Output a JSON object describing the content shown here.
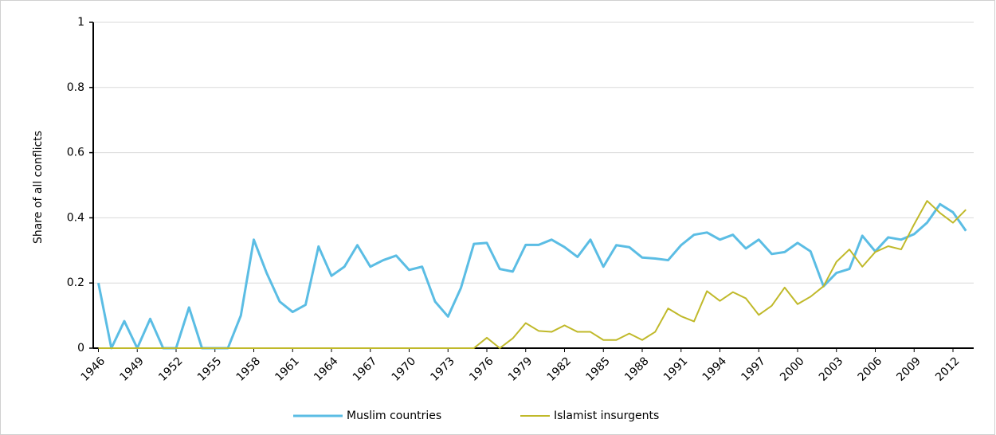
{
  "chart_data": {
    "type": "line",
    "x": [
      1946,
      1947,
      1948,
      1949,
      1950,
      1951,
      1952,
      1953,
      1954,
      1955,
      1956,
      1957,
      1958,
      1959,
      1960,
      1961,
      1962,
      1963,
      1964,
      1965,
      1966,
      1967,
      1968,
      1969,
      1970,
      1971,
      1972,
      1973,
      1974,
      1975,
      1976,
      1977,
      1978,
      1979,
      1980,
      1981,
      1982,
      1983,
      1984,
      1985,
      1986,
      1987,
      1988,
      1989,
      1990,
      1991,
      1992,
      1993,
      1994,
      1995,
      1996,
      1997,
      1998,
      1999,
      2000,
      2001,
      2002,
      2003,
      2004,
      2005,
      2006,
      2007,
      2008,
      2009,
      2010,
      2011,
      2012,
      2013
    ],
    "series": [
      {
        "name": "Muslim countries",
        "color": "#5bbde4",
        "values": [
          0.2,
          0,
          0.083,
          0,
          0.09,
          0,
          0,
          0.125,
          0,
          0,
          0,
          0.1,
          0.333,
          0.23,
          0.143,
          0.111,
          0.133,
          0.312,
          0.222,
          0.25,
          0.316,
          0.25,
          0.27,
          0.284,
          0.24,
          0.25,
          0.143,
          0.097,
          0.185,
          0.32,
          0.323,
          0.243,
          0.235,
          0.317,
          0.317,
          0.333,
          0.31,
          0.28,
          0.333,
          0.25,
          0.316,
          0.31,
          0.278,
          0.275,
          0.27,
          0.316,
          0.348,
          0.355,
          0.333,
          0.348,
          0.306,
          0.333,
          0.289,
          0.295,
          0.323,
          0.297,
          0.19,
          0.231,
          0.243,
          0.345,
          0.297,
          0.34,
          0.333,
          0.35,
          0.385,
          0.442,
          0.417,
          0.36
        ]
      },
      {
        "name": "Islamist insurgents",
        "color": "#c0b92a",
        "values": [
          0,
          0,
          0,
          0,
          0,
          0,
          0,
          0,
          0,
          0,
          0,
          0,
          0,
          0,
          0,
          0,
          0,
          0,
          0,
          0,
          0,
          0,
          0,
          0,
          0,
          0,
          0,
          0,
          0,
          0,
          0.032,
          0,
          0.03,
          0.077,
          0.053,
          0.05,
          0.07,
          0.05,
          0.05,
          0.025,
          0.025,
          0.045,
          0.025,
          0.05,
          0.122,
          0.098,
          0.082,
          0.175,
          0.145,
          0.172,
          0.153,
          0.102,
          0.13,
          0.186,
          0.135,
          0.158,
          0.19,
          0.265,
          0.303,
          0.25,
          0.295,
          0.313,
          0.303,
          0.38,
          0.452,
          0.415,
          0.385,
          0.425
        ]
      }
    ],
    "y_label": "Share of all conflicts",
    "xlim": [
      1945.6,
      2013.6
    ],
    "xticks": [
      1946,
      1949,
      1952,
      1955,
      1958,
      1961,
      1964,
      1967,
      1970,
      1973,
      1976,
      1979,
      1982,
      1985,
      1988,
      1991,
      1994,
      1997,
      2000,
      2003,
      2006,
      2009,
      2012
    ],
    "ylim": [
      0,
      1
    ],
    "yticks": [
      0,
      0.2,
      0.4,
      0.6,
      0.8,
      1
    ],
    "grid": true,
    "legend": "bottom"
  }
}
